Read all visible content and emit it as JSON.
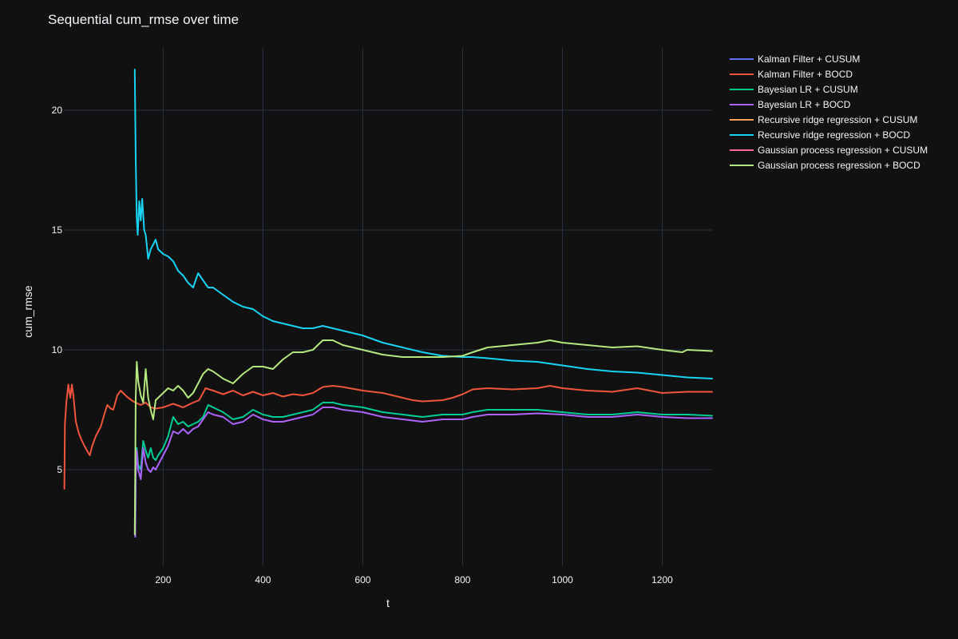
{
  "chart_data": {
    "type": "line",
    "title": "Sequential cum_rmse over time",
    "xlabel": "t",
    "ylabel": "cum_rmse",
    "xlim": [
      1,
      1300
    ],
    "ylim": [
      1,
      22.6
    ],
    "x_ticks": [
      200,
      400,
      600,
      800,
      1000,
      1200
    ],
    "y_ticks": [
      5,
      10,
      15,
      20
    ],
    "grid": true,
    "legend_position": "top-right",
    "background_color": "#111111",
    "grid_color": "#283442",
    "series": [
      {
        "name": "Kalman Filter + CUSUM",
        "color": "#636efa",
        "points": []
      },
      {
        "name": "Kalman Filter + BOCD",
        "color": "#ef553b",
        "points": [
          [
            2,
            4.2
          ],
          [
            3,
            6.9
          ],
          [
            6,
            7.8
          ],
          [
            10,
            8.55
          ],
          [
            14,
            8.0
          ],
          [
            17,
            8.55
          ],
          [
            20,
            8.1
          ],
          [
            25,
            7.0
          ],
          [
            30,
            6.6
          ],
          [
            35,
            6.3
          ],
          [
            42,
            6.0
          ],
          [
            50,
            5.7
          ],
          [
            53,
            5.6
          ],
          [
            58,
            6.0
          ],
          [
            65,
            6.4
          ],
          [
            75,
            6.8
          ],
          [
            82,
            7.3
          ],
          [
            88,
            7.7
          ],
          [
            95,
            7.55
          ],
          [
            100,
            7.5
          ],
          [
            108,
            8.1
          ],
          [
            115,
            8.3
          ],
          [
            122,
            8.15
          ],
          [
            130,
            8.0
          ],
          [
            140,
            7.85
          ],
          [
            145,
            7.8
          ],
          [
            155,
            7.7
          ],
          [
            165,
            7.8
          ],
          [
            175,
            7.6
          ],
          [
            185,
            7.55
          ],
          [
            200,
            7.6
          ],
          [
            220,
            7.75
          ],
          [
            240,
            7.6
          ],
          [
            260,
            7.8
          ],
          [
            272,
            7.9
          ],
          [
            285,
            8.4
          ],
          [
            300,
            8.3
          ],
          [
            320,
            8.15
          ],
          [
            340,
            8.3
          ],
          [
            360,
            8.1
          ],
          [
            380,
            8.25
          ],
          [
            400,
            8.1
          ],
          [
            420,
            8.2
          ],
          [
            440,
            8.05
          ],
          [
            460,
            8.15
          ],
          [
            480,
            8.1
          ],
          [
            500,
            8.2
          ],
          [
            520,
            8.45
          ],
          [
            540,
            8.5
          ],
          [
            560,
            8.45
          ],
          [
            600,
            8.3
          ],
          [
            640,
            8.2
          ],
          [
            680,
            8.0
          ],
          [
            700,
            7.9
          ],
          [
            720,
            7.85
          ],
          [
            760,
            7.9
          ],
          [
            780,
            8.0
          ],
          [
            800,
            8.15
          ],
          [
            820,
            8.35
          ],
          [
            850,
            8.4
          ],
          [
            900,
            8.35
          ],
          [
            950,
            8.4
          ],
          [
            975,
            8.5
          ],
          [
            1000,
            8.4
          ],
          [
            1050,
            8.3
          ],
          [
            1100,
            8.25
          ],
          [
            1150,
            8.4
          ],
          [
            1200,
            8.2
          ],
          [
            1250,
            8.25
          ],
          [
            1300,
            8.25
          ]
        ]
      },
      {
        "name": "Bayesian LR + CUSUM",
        "color": "#00cc96",
        "points": [
          [
            144,
            2.2
          ],
          [
            145,
            4.8
          ],
          [
            147,
            5.9
          ],
          [
            150,
            5.2
          ],
          [
            155,
            5.0
          ],
          [
            160,
            6.2
          ],
          [
            165,
            5.8
          ],
          [
            170,
            5.5
          ],
          [
            175,
            5.9
          ],
          [
            180,
            5.5
          ],
          [
            185,
            5.4
          ],
          [
            190,
            5.6
          ],
          [
            200,
            5.9
          ],
          [
            210,
            6.4
          ],
          [
            220,
            7.2
          ],
          [
            230,
            6.9
          ],
          [
            240,
            7.0
          ],
          [
            250,
            6.8
          ],
          [
            260,
            6.9
          ],
          [
            270,
            7.0
          ],
          [
            280,
            7.2
          ],
          [
            290,
            7.7
          ],
          [
            300,
            7.6
          ],
          [
            320,
            7.4
          ],
          [
            340,
            7.1
          ],
          [
            360,
            7.2
          ],
          [
            380,
            7.5
          ],
          [
            400,
            7.3
          ],
          [
            420,
            7.2
          ],
          [
            440,
            7.2
          ],
          [
            460,
            7.3
          ],
          [
            480,
            7.4
          ],
          [
            500,
            7.5
          ],
          [
            520,
            7.8
          ],
          [
            540,
            7.8
          ],
          [
            560,
            7.7
          ],
          [
            600,
            7.6
          ],
          [
            640,
            7.4
          ],
          [
            680,
            7.3
          ],
          [
            720,
            7.2
          ],
          [
            760,
            7.3
          ],
          [
            800,
            7.3
          ],
          [
            820,
            7.4
          ],
          [
            850,
            7.5
          ],
          [
            900,
            7.5
          ],
          [
            950,
            7.5
          ],
          [
            1000,
            7.4
          ],
          [
            1050,
            7.3
          ],
          [
            1100,
            7.3
          ],
          [
            1150,
            7.4
          ],
          [
            1200,
            7.3
          ],
          [
            1250,
            7.3
          ],
          [
            1300,
            7.25
          ]
        ]
      },
      {
        "name": "Bayesian LR + BOCD",
        "color": "#ab63fa",
        "points": [
          [
            144,
            2.2
          ],
          [
            145,
            4.7
          ],
          [
            147,
            5.8
          ],
          [
            150,
            5.0
          ],
          [
            155,
            4.6
          ],
          [
            160,
            5.9
          ],
          [
            165,
            5.3
          ],
          [
            170,
            5.0
          ],
          [
            175,
            4.9
          ],
          [
            180,
            5.1
          ],
          [
            185,
            5.0
          ],
          [
            190,
            5.2
          ],
          [
            200,
            5.6
          ],
          [
            210,
            6.0
          ],
          [
            220,
            6.6
          ],
          [
            230,
            6.5
          ],
          [
            240,
            6.7
          ],
          [
            250,
            6.5
          ],
          [
            260,
            6.7
          ],
          [
            270,
            6.8
          ],
          [
            280,
            7.1
          ],
          [
            290,
            7.4
          ],
          [
            300,
            7.3
          ],
          [
            320,
            7.2
          ],
          [
            340,
            6.9
          ],
          [
            360,
            7.0
          ],
          [
            380,
            7.3
          ],
          [
            400,
            7.1
          ],
          [
            420,
            7.0
          ],
          [
            440,
            7.0
          ],
          [
            460,
            7.1
          ],
          [
            480,
            7.2
          ],
          [
            500,
            7.3
          ],
          [
            520,
            7.6
          ],
          [
            540,
            7.6
          ],
          [
            560,
            7.5
          ],
          [
            600,
            7.4
          ],
          [
            640,
            7.2
          ],
          [
            680,
            7.1
          ],
          [
            720,
            7.0
          ],
          [
            760,
            7.1
          ],
          [
            800,
            7.1
          ],
          [
            820,
            7.2
          ],
          [
            850,
            7.3
          ],
          [
            900,
            7.3
          ],
          [
            950,
            7.35
          ],
          [
            1000,
            7.3
          ],
          [
            1050,
            7.2
          ],
          [
            1100,
            7.2
          ],
          [
            1150,
            7.3
          ],
          [
            1200,
            7.2
          ],
          [
            1250,
            7.15
          ],
          [
            1300,
            7.15
          ]
        ]
      },
      {
        "name": "Recursive ridge regression + CUSUM",
        "color": "#ffa15a",
        "points": []
      },
      {
        "name": "Recursive ridge regression + BOCD",
        "color": "#19d3f3",
        "points": [
          [
            143,
            21.7
          ],
          [
            145,
            18.0
          ],
          [
            147,
            15.5
          ],
          [
            149,
            14.8
          ],
          [
            152,
            16.2
          ],
          [
            155,
            15.4
          ],
          [
            158,
            16.3
          ],
          [
            162,
            15.0
          ],
          [
            165,
            14.8
          ],
          [
            170,
            13.8
          ],
          [
            175,
            14.2
          ],
          [
            180,
            14.4
          ],
          [
            185,
            14.6
          ],
          [
            190,
            14.2
          ],
          [
            200,
            14.0
          ],
          [
            210,
            13.9
          ],
          [
            220,
            13.7
          ],
          [
            230,
            13.3
          ],
          [
            240,
            13.1
          ],
          [
            250,
            12.8
          ],
          [
            260,
            12.6
          ],
          [
            270,
            13.2
          ],
          [
            280,
            12.9
          ],
          [
            290,
            12.6
          ],
          [
            300,
            12.6
          ],
          [
            320,
            12.3
          ],
          [
            340,
            12.0
          ],
          [
            360,
            11.8
          ],
          [
            380,
            11.7
          ],
          [
            400,
            11.4
          ],
          [
            420,
            11.2
          ],
          [
            440,
            11.1
          ],
          [
            460,
            11.0
          ],
          [
            480,
            10.9
          ],
          [
            500,
            10.9
          ],
          [
            520,
            11.0
          ],
          [
            540,
            10.9
          ],
          [
            560,
            10.8
          ],
          [
            600,
            10.6
          ],
          [
            640,
            10.3
          ],
          [
            680,
            10.1
          ],
          [
            720,
            9.9
          ],
          [
            760,
            9.75
          ],
          [
            800,
            9.7
          ],
          [
            820,
            9.7
          ],
          [
            850,
            9.65
          ],
          [
            900,
            9.55
          ],
          [
            950,
            9.5
          ],
          [
            1000,
            9.35
          ],
          [
            1050,
            9.2
          ],
          [
            1100,
            9.1
          ],
          [
            1150,
            9.05
          ],
          [
            1200,
            8.95
          ],
          [
            1250,
            8.85
          ],
          [
            1300,
            8.8
          ]
        ]
      },
      {
        "name": "Gaussian process regression + CUSUM",
        "color": "#ff6692",
        "points": []
      },
      {
        "name": "Gaussian process regression + BOCD",
        "color": "#b6e880",
        "points": [
          [
            143,
            2.3
          ],
          [
            144,
            5.0
          ],
          [
            145,
            8.0
          ],
          [
            147,
            9.5
          ],
          [
            150,
            8.7
          ],
          [
            155,
            8.1
          ],
          [
            160,
            7.8
          ],
          [
            165,
            9.2
          ],
          [
            170,
            8.0
          ],
          [
            175,
            7.5
          ],
          [
            180,
            7.1
          ],
          [
            185,
            7.9
          ],
          [
            190,
            8.0
          ],
          [
            200,
            8.2
          ],
          [
            210,
            8.4
          ],
          [
            220,
            8.3
          ],
          [
            230,
            8.5
          ],
          [
            240,
            8.3
          ],
          [
            250,
            8.0
          ],
          [
            260,
            8.2
          ],
          [
            270,
            8.6
          ],
          [
            280,
            9.0
          ],
          [
            290,
            9.2
          ],
          [
            300,
            9.1
          ],
          [
            320,
            8.8
          ],
          [
            340,
            8.6
          ],
          [
            360,
            9.0
          ],
          [
            380,
            9.3
          ],
          [
            400,
            9.3
          ],
          [
            420,
            9.2
          ],
          [
            440,
            9.6
          ],
          [
            460,
            9.9
          ],
          [
            480,
            9.9
          ],
          [
            500,
            10.0
          ],
          [
            520,
            10.4
          ],
          [
            540,
            10.4
          ],
          [
            560,
            10.2
          ],
          [
            600,
            10.0
          ],
          [
            640,
            9.8
          ],
          [
            680,
            9.7
          ],
          [
            720,
            9.7
          ],
          [
            760,
            9.7
          ],
          [
            800,
            9.75
          ],
          [
            820,
            9.9
          ],
          [
            850,
            10.1
          ],
          [
            900,
            10.2
          ],
          [
            950,
            10.3
          ],
          [
            975,
            10.4
          ],
          [
            1000,
            10.3
          ],
          [
            1050,
            10.2
          ],
          [
            1100,
            10.1
          ],
          [
            1150,
            10.15
          ],
          [
            1200,
            10.0
          ],
          [
            1240,
            9.9
          ],
          [
            1250,
            10.0
          ],
          [
            1300,
            9.95
          ]
        ]
      }
    ]
  }
}
